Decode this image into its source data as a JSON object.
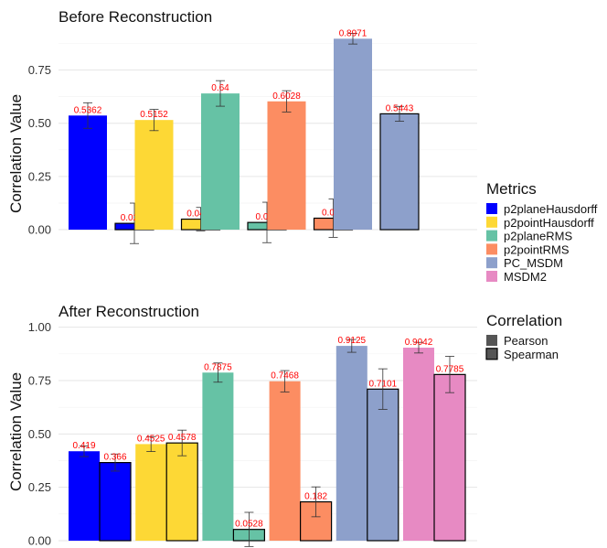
{
  "chart_data": [
    {
      "type": "bar",
      "title": "Before Reconstruction",
      "ylabel": "Correlation Value",
      "xlabel": "",
      "ylim": [
        -0.09,
        0.95
      ],
      "yticks": [
        0.0,
        0.25,
        0.5,
        0.75
      ],
      "ytick_labels": [
        "0.00",
        "0.25",
        "0.50",
        "0.75"
      ],
      "grid": true,
      "categories": [
        "p2planeHausdorff",
        "p2pointHausdorff",
        "p2planeRMS",
        "p2pointRMS",
        "PC_MSDM"
      ],
      "series": [
        {
          "name": "Pearson",
          "values": [
            0.5362,
            0.5152,
            0.64,
            0.6028,
            0.8971
          ],
          "labels": [
            "0.5362",
            "0.5152",
            "0.64",
            "0.6028",
            "0.8971"
          ],
          "error": [
            0.06,
            0.05,
            0.06,
            0.05,
            0.025
          ]
        },
        {
          "name": "Spearman",
          "values": [
            0.0298,
            0.0495,
            0.034,
            0.054,
            0.5443
          ],
          "labels": [
            "0.0298",
            "0.0495",
            "0.034",
            "0.054",
            "0.5443"
          ],
          "error": [
            0.095,
            0.055,
            0.095,
            0.09,
            0.035
          ]
        }
      ]
    },
    {
      "type": "bar",
      "title": "After Reconstruction",
      "ylabel": "Correlation Value",
      "xlabel": "",
      "ylim": [
        -0.03,
        1.02
      ],
      "yticks": [
        0.0,
        0.25,
        0.5,
        0.75,
        1.0
      ],
      "ytick_labels": [
        "0.00",
        "0.25",
        "0.50",
        "0.75",
        "1.00"
      ],
      "grid": true,
      "categories": [
        "p2planeHausdorff",
        "p2pointHausdorff",
        "p2planeRMS",
        "p2pointRMS",
        "PC_MSDM",
        "MSDM2"
      ],
      "series": [
        {
          "name": "Pearson",
          "values": [
            0.419,
            0.4525,
            0.7875,
            0.7468,
            0.9125,
            0.9042
          ],
          "labels": [
            "0.419",
            "0.4525",
            "0.7875",
            "0.7468",
            "0.9125",
            "0.9042"
          ],
          "error": [
            0.025,
            0.035,
            0.045,
            0.05,
            0.03,
            0.025
          ]
        },
        {
          "name": "Spearman",
          "values": [
            0.366,
            0.4578,
            0.0528,
            0.182,
            0.7101,
            0.7785
          ],
          "labels": [
            "0.366",
            "0.4578",
            "0.0528",
            "0.182",
            "0.7101",
            "0.7785"
          ],
          "error": [
            0.04,
            0.06,
            0.08,
            0.07,
            0.095,
            0.085
          ]
        }
      ]
    }
  ],
  "legend": {
    "placement": "right",
    "metrics_title": "Metrics",
    "metrics": [
      {
        "label": "p2planeHausdorff",
        "color": "#0000ff"
      },
      {
        "label": "p2pointHausdorff",
        "color": "#fdd835"
      },
      {
        "label": "p2planeRMS",
        "color": "#66c2a5"
      },
      {
        "label": "p2pointRMS",
        "color": "#fc8d62"
      },
      {
        "label": "PC_MSDM",
        "color": "#8da0cb"
      },
      {
        "label": "MSDM2",
        "color": "#e78ac3"
      }
    ],
    "correlation_title": "Correlation",
    "correlation": [
      {
        "label": "Pearson",
        "outlined": false
      },
      {
        "label": "Spearman",
        "outlined": true
      }
    ]
  }
}
